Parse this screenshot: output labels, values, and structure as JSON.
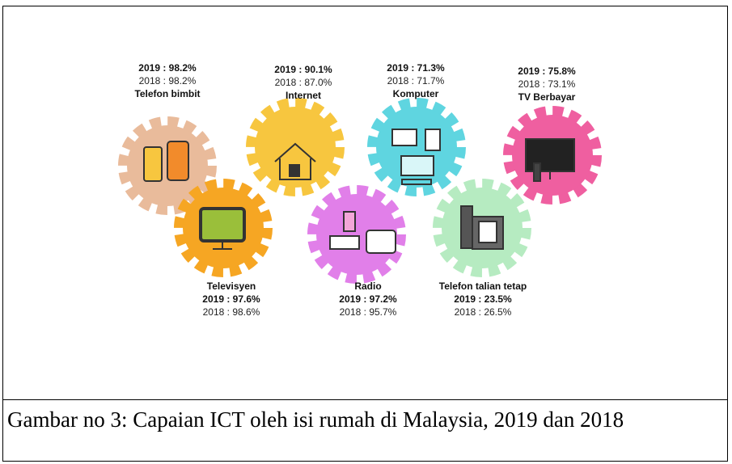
{
  "items": [
    {
      "name": "Telefon bimbit",
      "y2019": "2019 : 98.2%",
      "y2018": "2018 : 98.2%"
    },
    {
      "name": "Internet",
      "y2019": "2019 : 90.1%",
      "y2018": "2018 : 87.0%"
    },
    {
      "name": "Komputer",
      "y2019": "2019 : 71.3%",
      "y2018": "2018 : 71.7%"
    },
    {
      "name": "TV Berbayar",
      "y2019": "2019 : 75.8%",
      "y2018": "2018 : 73.1%"
    },
    {
      "name": "Televisyen",
      "y2019": "2019 : 97.6%",
      "y2018": "2018 : 98.6%"
    },
    {
      "name": "Radio",
      "y2019": "2019 : 97.2%",
      "y2018": "2018 : 95.7%"
    },
    {
      "name": "Telefon talian tetap",
      "y2019": "2019 : 23.5%",
      "y2018": "2018 : 26.5%"
    }
  ],
  "caption": "Gambar no 3: Capaian ICT oleh isi rumah di Malaysia, 2019 dan 2018"
}
